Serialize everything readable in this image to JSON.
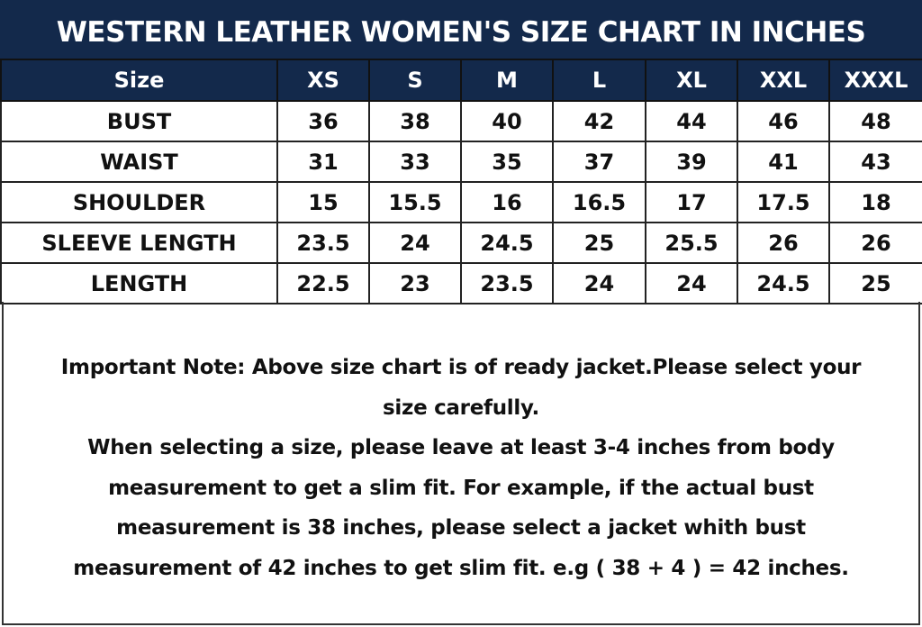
{
  "title": "WESTERN LEATHER WOMEN'S SIZE CHART IN INCHES",
  "colors": {
    "header_bg": "#13294b",
    "header_text": "#ffffff"
  },
  "table": {
    "header": [
      "Size",
      "XS",
      "S",
      "M",
      "L",
      "XL",
      "XXL",
      "XXXL"
    ],
    "rows": [
      [
        "BUST",
        "36",
        "38",
        "40",
        "42",
        "44",
        "46",
        "48"
      ],
      [
        "WAIST",
        "31",
        "33",
        "35",
        "37",
        "39",
        "41",
        "43"
      ],
      [
        "SHOULDER",
        "15",
        "15.5",
        "16",
        "16.5",
        "17",
        "17.5",
        "18"
      ],
      [
        "SLEEVE LENGTH",
        "23.5",
        "24",
        "24.5",
        "25",
        "25.5",
        "26",
        "26"
      ],
      [
        "LENGTH",
        "22.5",
        "23",
        "23.5",
        "24",
        "24",
        "24.5",
        "25"
      ]
    ]
  },
  "note": {
    "lines": [
      "Important Note: Above size chart is of ready jacket.Please select your",
      "size carefully.",
      "When selecting a size, please leave at least 3-4 inches from body",
      "measurement to get a slim fit. For example, if the actual bust",
      "measurement is 38 inches, please select a jacket whith bust",
      "measurement of 42 inches to get slim fit. e.g ( 38 + 4 ) = 42 inches."
    ]
  }
}
